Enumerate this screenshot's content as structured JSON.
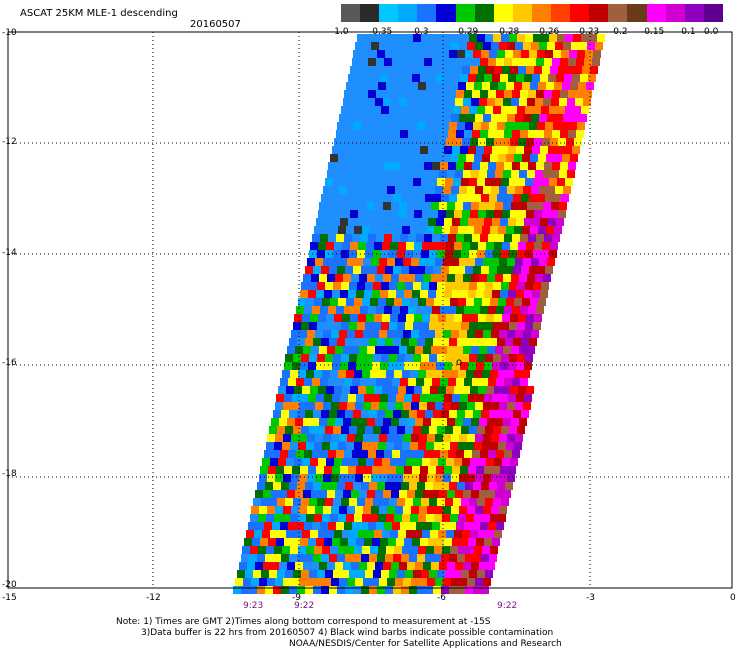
{
  "header": {
    "title": "ASCAT 25KM MLE-1 descending",
    "date": "20160507"
  },
  "colorbar": {
    "colors": [
      "#595959",
      "#2a2a2a",
      "#00c8ff",
      "#00aaff",
      "#1a73ff",
      "#0000d6",
      "#00c800",
      "#007000",
      "#ffff00",
      "#ffc800",
      "#ff8000",
      "#ff4000",
      "#ff0000",
      "#c00000",
      "#a06040",
      "#6b3a1a",
      "#ff00ff",
      "#d000d0",
      "#9000c0",
      "#600090"
    ],
    "labels": [
      "-1.0",
      "-0.35",
      "-0.3",
      "-0.29",
      "-0.28",
      "-0.26",
      "-0.23",
      "-0.2",
      "-0.15",
      "-0.1",
      "0.0"
    ]
  },
  "axes": {
    "y_ticks": [
      "-10",
      "-12",
      "-14",
      "-16",
      "-18",
      "-20"
    ],
    "x_ticks": [
      "-15",
      "-12",
      "-9",
      "-6",
      "-3",
      "0"
    ]
  },
  "time_labels": [
    "9:23",
    "9:22",
    "9:22"
  ],
  "notes": [
    "Note: 1) Times are GMT 2)Times along bottom correspond to measurement at -15S",
    "3)Data buffer is 22 hrs from 20160507 4) Black wind barbs indicate possible contamination",
    "NOAA/NESDIS/Center for Satellite Applications and Research"
  ]
}
